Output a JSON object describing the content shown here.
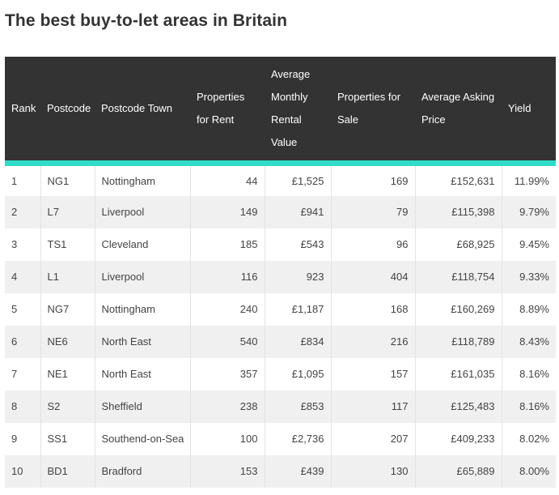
{
  "title": "The best buy-to-let areas in Britain",
  "table": {
    "headers": {
      "rank": "Rank",
      "postcode": "Postcode",
      "town": "Postcode Town",
      "rent_props": "Properties for Rent",
      "rent_value": "Average Monthly Rental Value",
      "sale_props": "Properties for Sale",
      "asking": "Average Asking Price",
      "yield": "Yield"
    },
    "rows": [
      {
        "rank": "1",
        "postcode": "NG1",
        "town": "Nottingham",
        "rent_props": "44",
        "rent_value": "£1,525",
        "sale_props": "169",
        "asking": "£152,631",
        "yield": "11.99%"
      },
      {
        "rank": "2",
        "postcode": "L7",
        "town": "Liverpool",
        "rent_props": "149",
        "rent_value": "£941",
        "sale_props": "79",
        "asking": "£115,398",
        "yield": "9.79%"
      },
      {
        "rank": "3",
        "postcode": "TS1",
        "town": "Cleveland",
        "rent_props": "185",
        "rent_value": "£543",
        "sale_props": "96",
        "asking": "£68,925",
        "yield": "9.45%"
      },
      {
        "rank": "4",
        "postcode": "L1",
        "town": "Liverpool",
        "rent_props": "116",
        "rent_value": "923",
        "sale_props": "404",
        "asking": "£118,754",
        "yield": "9.33%"
      },
      {
        "rank": "5",
        "postcode": "NG7",
        "town": "Nottingham",
        "rent_props": "240",
        "rent_value": "£1,187",
        "sale_props": "168",
        "asking": "£160,269",
        "yield": "8.89%"
      },
      {
        "rank": "6",
        "postcode": "NE6",
        "town": "North East",
        "rent_props": "540",
        "rent_value": "£834",
        "sale_props": "216",
        "asking": "£118,789",
        "yield": "8.43%"
      },
      {
        "rank": "7",
        "postcode": "NE1",
        "town": "North East",
        "rent_props": "357",
        "rent_value": "£1,095",
        "sale_props": "157",
        "asking": "£161,035",
        "yield": "8.16%"
      },
      {
        "rank": "8",
        "postcode": "S2",
        "town": "Sheffield",
        "rent_props": "238",
        "rent_value": "£853",
        "sale_props": "117",
        "asking": "£125,483",
        "yield": "8.16%"
      },
      {
        "rank": "9",
        "postcode": "SS1",
        "town": "Southend-on-Sea",
        "rent_props": "100",
        "rent_value": "£2,736",
        "sale_props": "207",
        "asking": "£409,233",
        "yield": "8.02%"
      },
      {
        "rank": "10",
        "postcode": "BD1",
        "town": "Bradford",
        "rent_props": "153",
        "rent_value": "£439",
        "sale_props": "130",
        "asking": "£65,889",
        "yield": "8.00%"
      }
    ]
  }
}
